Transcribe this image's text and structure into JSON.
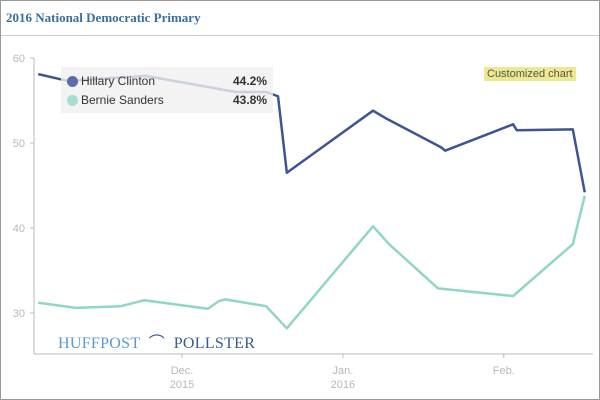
{
  "chart_data": {
    "type": "line",
    "title": "2016 National Democratic Primary",
    "x_unit": "days since Dec. 1, 2015",
    "ylim": [
      25,
      60
    ],
    "yticks": [
      30,
      40,
      50,
      60
    ],
    "xticks": [
      {
        "x": 0,
        "label": "Dec.",
        "sublabel": "2015"
      },
      {
        "x": 31,
        "label": "Jan.",
        "sublabel": "2016"
      },
      {
        "x": 62,
        "label": "Feb.",
        "sublabel": ""
      }
    ],
    "xlim": [
      -27.7,
      80
    ],
    "series": [
      {
        "name": "Hillary Clinton",
        "color": "#3d5595",
        "latest": "44.2%",
        "points": [
          [
            -27.7,
            58.1
          ],
          [
            -22,
            57.3
          ],
          [
            -7,
            57.9
          ],
          [
            10.4,
            56
          ],
          [
            16.2,
            56
          ],
          [
            18.5,
            55.5
          ],
          [
            20.2,
            46.5
          ],
          [
            36.8,
            53.8
          ],
          [
            39.3,
            52.9
          ],
          [
            49.9,
            49.5
          ],
          [
            50.7,
            49.1
          ],
          [
            63.8,
            52.2
          ],
          [
            64.5,
            51.5
          ],
          [
            75.3,
            51.6
          ],
          [
            77.6,
            44.2
          ]
        ]
      },
      {
        "name": "Bernie Sanders",
        "color": "#8fd6c6",
        "latest": "43.8%",
        "points": [
          [
            -27.7,
            31.2
          ],
          [
            -20.4,
            30.6
          ],
          [
            -11.8,
            30.8
          ],
          [
            -7.3,
            31.5
          ],
          [
            5,
            30.5
          ],
          [
            7.1,
            31.4
          ],
          [
            8.3,
            31.6
          ],
          [
            16.2,
            30.8
          ],
          [
            20.2,
            28.2
          ],
          [
            36.8,
            40.2
          ],
          [
            39.9,
            38.1
          ],
          [
            49.3,
            32.9
          ],
          [
            63.8,
            32
          ],
          [
            75.3,
            38.1
          ],
          [
            77.6,
            43.8
          ]
        ]
      }
    ],
    "legend": "top-left",
    "grid": false
  },
  "badge": "Customized chart",
  "logo": {
    "left": "HUFFPOST",
    "right": "POLLSTER"
  }
}
